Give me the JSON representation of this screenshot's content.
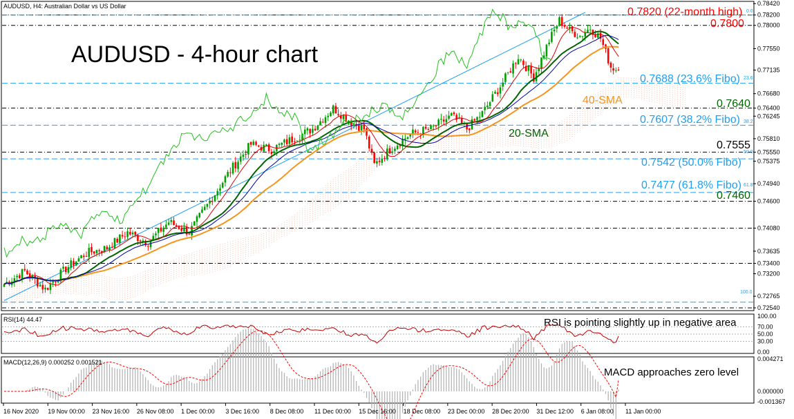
{
  "header": {
    "main_panel": "AUDUSD, H4:  Australian Dollar vs US Dollar",
    "rsi_panel": "RSI(14) 44.47",
    "macd_panel": "MACD(12,26,9) 0.000252 0.001521"
  },
  "chart_title": "AUDUSD - 4-hour chart",
  "annotations": {
    "high_22m": "0.7820 (22-month high)",
    "level_7800": "0.7800",
    "fib_236": "0.7688 (23.6% Fibo)",
    "level_7640": "0.7640",
    "sma40": "40-SMA",
    "fib_382": "0.7607 (38.2% Fibo)",
    "sma20": "20-SMA",
    "level_7555": "0.7555",
    "fib_500": "0.7542 (50.0% Fibo)",
    "fib_618": "0.7477 (61.8% Fibo)",
    "level_7460": "0.7460",
    "rsi_note": "RSI is pointing slightly up in negative area",
    "macd_note": "MACD approaches zero level"
  },
  "fib_small_labels": [
    "0.0",
    "23.6",
    "38.2",
    "50.0",
    "61.8",
    "100.0"
  ],
  "price_axis_labels": [
    "0.78420",
    "0.78200",
    "0.78000",
    "0.77550",
    "0.77135",
    "0.76680",
    "0.76400",
    "0.76245",
    "0.75810",
    "0.75550",
    "0.75375",
    "0.74940",
    "0.74600",
    "0.74080",
    "0.73635",
    "0.73400",
    "0.73200",
    "0.72765",
    "0.72540"
  ],
  "rsi_axis_labels": [
    "100.00",
    "70.00",
    "50.00",
    "30.00",
    "0.00"
  ],
  "macd_axis_labels": [
    "0.004271",
    "0.000000",
    "-0.001367"
  ],
  "time_axis_labels": [
    "16 Nov 2020",
    "19 Nov 00:00",
    "23 Nov 16:00",
    "26 Nov 08:00",
    "1 Dec 00:00",
    "3 Dec 16:00",
    "8 Dec 08:00",
    "11 Dec 00:00",
    "15 Dec 16:00",
    "18 Dec 08:00",
    "23 Dec 00:00",
    "28 Dec 20:00",
    "31 Dec 12:00",
    "6 Jan 08:00",
    "11 Jan 00:00"
  ],
  "colors": {
    "bull": "#00a000",
    "bear": "#ff0000",
    "sma20": "#006400",
    "sma40": "#f7941d",
    "fib": "#1e9ff2",
    "ichimoku_cloud": "#f4b9a0",
    "chikou": "#22c21e",
    "tenkan": "#dd0000",
    "kijun": "#0000aa",
    "trendline": "#1e9ff2"
  },
  "chart_data": {
    "type": "candlestick",
    "symbol": "AUDUSD",
    "timeframe": "H4",
    "ylim": [
      0.725,
      0.7845
    ],
    "support_resistance": [
      0.782,
      0.78,
      0.764,
      0.7555,
      0.746,
      0.7408,
      0.734,
      0.7254
    ],
    "fibonacci_levels": [
      {
        "ratio": "0.0",
        "price": 0.782
      },
      {
        "ratio": "23.6",
        "price": 0.7688
      },
      {
        "ratio": "38.2",
        "price": 0.7607
      },
      {
        "ratio": "50.0",
        "price": 0.7542
      },
      {
        "ratio": "61.8",
        "price": 0.7477
      },
      {
        "ratio": "100.0",
        "price": 0.7265
      }
    ],
    "close_anchors": [
      [
        0,
        0.73
      ],
      [
        8,
        0.7325
      ],
      [
        16,
        0.729
      ],
      [
        24,
        0.733
      ],
      [
        32,
        0.736
      ],
      [
        40,
        0.737
      ],
      [
        48,
        0.74
      ],
      [
        56,
        0.738
      ],
      [
        64,
        0.742
      ],
      [
        72,
        0.74
      ],
      [
        80,
        0.746
      ],
      [
        88,
        0.752
      ],
      [
        96,
        0.757
      ],
      [
        104,
        0.756
      ],
      [
        112,
        0.758
      ],
      [
        120,
        0.76
      ],
      [
        128,
        0.764
      ],
      [
        136,
        0.761
      ],
      [
        140,
        0.76
      ],
      [
        144,
        0.753
      ],
      [
        150,
        0.756
      ],
      [
        158,
        0.759
      ],
      [
        166,
        0.76
      ],
      [
        174,
        0.7625
      ],
      [
        180,
        0.76
      ],
      [
        186,
        0.763
      ],
      [
        194,
        0.769
      ],
      [
        200,
        0.774
      ],
      [
        206,
        0.77
      ],
      [
        212,
        0.777
      ],
      [
        216,
        0.781
      ],
      [
        220,
        0.779
      ],
      [
        224,
        0.778
      ],
      [
        228,
        0.7795
      ],
      [
        232,
        0.7775
      ],
      [
        236,
        0.772
      ],
      [
        239,
        0.7713
      ]
    ],
    "rsi": {
      "last": 44.47,
      "levels": [
        70,
        50,
        30
      ],
      "ylim": [
        0,
        100
      ]
    },
    "macd": {
      "main": 0.000252,
      "signal": 0.001521,
      "ylim": [
        -0.001367,
        0.004271
      ]
    }
  }
}
